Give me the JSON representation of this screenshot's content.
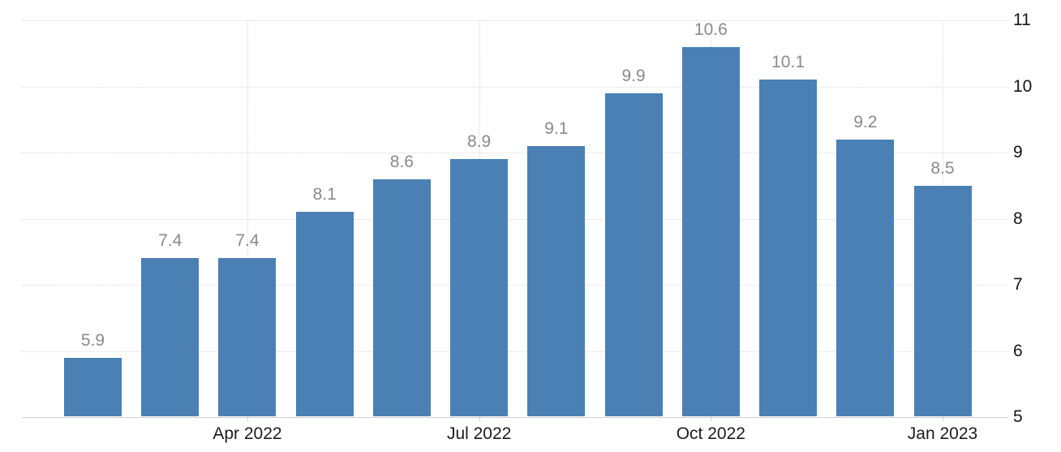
{
  "chart_data": {
    "type": "bar",
    "title": "",
    "values": [
      5.9,
      7.4,
      7.4,
      8.1,
      8.6,
      8.9,
      9.1,
      9.9,
      10.6,
      10.1,
      9.2,
      8.5
    ],
    "value_labels": [
      "5.9",
      "7.4",
      "7.4",
      "8.1",
      "8.6",
      "8.9",
      "9.1",
      "9.9",
      "10.6",
      "10.1",
      "9.2",
      "8.5"
    ],
    "x_tick_labels": [
      {
        "label": "Apr 2022",
        "bar_index": 2
      },
      {
        "label": "Jul 2022",
        "bar_index": 5
      },
      {
        "label": "Oct 2022",
        "bar_index": 8
      },
      {
        "label": "Jan 2023",
        "bar_index": 11
      }
    ],
    "y_ticks": [
      "5",
      "6",
      "7",
      "8",
      "9",
      "10",
      "11"
    ],
    "ylim": [
      5,
      11
    ],
    "y_axis_side": "right",
    "xlabel": "",
    "ylabel": "",
    "grid": "dotted",
    "legend": "none",
    "colors": {
      "bar": "#4a80b4",
      "value_label": "#8a8a8a",
      "axis_text": "#1c1c1c",
      "gridline": "#d9d9d9",
      "axis_line": "#cfcfcf",
      "background": "#ffffff"
    }
  }
}
